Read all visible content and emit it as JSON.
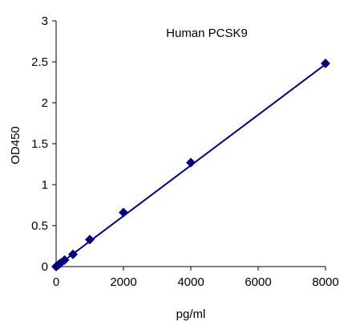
{
  "chart_data": {
    "type": "scatter",
    "title": "Human  PCSK9",
    "xlabel": "pg/ml",
    "ylabel": "OD450",
    "xlim": [
      0,
      8000
    ],
    "ylim": [
      0,
      3
    ],
    "xticks": [
      "0",
      "2000",
      "4000",
      "6000",
      "8000"
    ],
    "yticks": [
      "0",
      "0.5",
      "1",
      "1.5",
      "2",
      "2.5",
      "3"
    ],
    "grid": false,
    "legend": "none",
    "series": [
      {
        "x": [
          0,
          62.5,
          125,
          250,
          500,
          1000,
          2000,
          4000,
          8000
        ],
        "y": [
          0.0,
          0.02,
          0.04,
          0.08,
          0.15,
          0.33,
          0.66,
          1.27,
          2.48
        ]
      }
    ],
    "trendline": {
      "type": "linear",
      "x": [
        0,
        8000
      ],
      "y": [
        0.0,
        2.47
      ]
    },
    "colors": {
      "series": "#000080",
      "axis": "#000000"
    }
  }
}
